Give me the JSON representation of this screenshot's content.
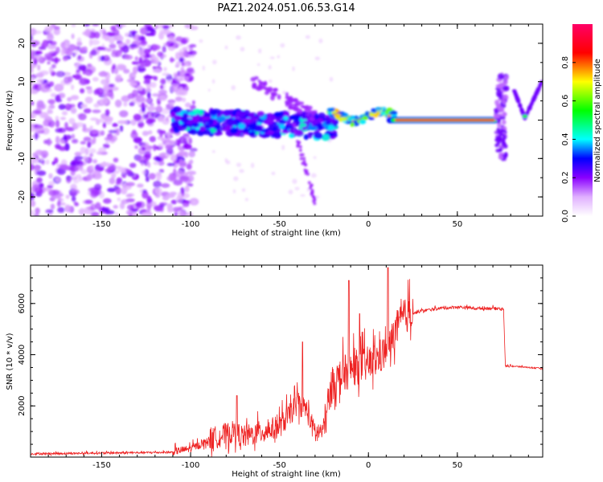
{
  "figure_title": "PAZ1.2024.051.06.53.G14",
  "chart_data": [
    {
      "type": "heatmap",
      "xlabel": "Height of straight line (km)",
      "ylabel": "Frequency (Hz)",
      "xlim": [
        -190,
        98
      ],
      "ylim": [
        -25,
        25
      ],
      "xticks": [
        -150,
        -100,
        -50,
        0,
        50
      ],
      "yticks": [
        -20,
        -10,
        0,
        10,
        20
      ],
      "colorbar": {
        "label": "Normalized spectral amplitude",
        "range": [
          0,
          1
        ],
        "ticks": [
          0.0,
          0.2,
          0.4,
          0.6,
          0.8
        ],
        "colormap": "rainbow (white, magenta, blue, cyan, green, yellow, red)"
      },
      "features": [
        {
          "x_range": [
            -190,
            -100
          ],
          "freq_range": [
            -25,
            25
          ],
          "amplitude": 0.15
        },
        {
          "x_range": [
            -110,
            -20
          ],
          "freq_range": [
            -3,
            3
          ],
          "amplitude": 0.3
        },
        {
          "x_range": [
            -60,
            -25
          ],
          "freq_center": 5,
          "amplitude": 0.15
        },
        {
          "x_range": [
            -20,
            15
          ],
          "freq_center": 1,
          "amplitude": 0.6
        },
        {
          "x_range": [
            15,
            72
          ],
          "freq_center": 0,
          "amplitude": 0.95
        },
        {
          "x_range": [
            72,
            82
          ],
          "freq_range": [
            -10,
            12
          ],
          "amplitude": 0.2
        },
        {
          "x_range": [
            82,
            98
          ],
          "freq_range": [
            0,
            11
          ],
          "amplitude": 0.25
        }
      ]
    },
    {
      "type": "line",
      "xlabel": "Height of straight line (km)",
      "ylabel": "SNR (10 * v/v)",
      "xlim": [
        -190,
        98
      ],
      "ylim": [
        0,
        7500
      ],
      "xticks": [
        -150,
        -100,
        -50,
        0,
        50
      ],
      "yticks": [
        2000,
        4000,
        6000
      ],
      "color": "#ee2222",
      "series": [
        {
          "x": [
            -190,
            -150,
            -110,
            -100,
            -90,
            -80,
            -75,
            -70,
            -60,
            -50,
            -45,
            -40,
            -35,
            -30,
            -25,
            -20,
            -15,
            -10,
            -5,
            0,
            5,
            10,
            12,
            15,
            20,
            25,
            30,
            40,
            50,
            60,
            70,
            76,
            77,
            80,
            90,
            98
          ],
          "y": [
            120,
            150,
            180,
            300,
            600,
            800,
            900,
            700,
            900,
            1100,
            1500,
            2000,
            1800,
            800,
            1000,
            2800,
            3000,
            3300,
            3400,
            3500,
            3700,
            4000,
            4200,
            4800,
            5300,
            5600,
            5700,
            5800,
            5850,
            5800,
            5800,
            5780,
            3550,
            3550,
            3500,
            3450
          ]
        }
      ],
      "spikes": [
        {
          "x": -74,
          "y": 2400
        },
        {
          "x": -37,
          "y": 4500
        },
        {
          "x": -11,
          "y": 6900
        },
        {
          "x": -5,
          "y": 5600
        },
        {
          "x": 11,
          "y": 7400
        }
      ]
    }
  ]
}
